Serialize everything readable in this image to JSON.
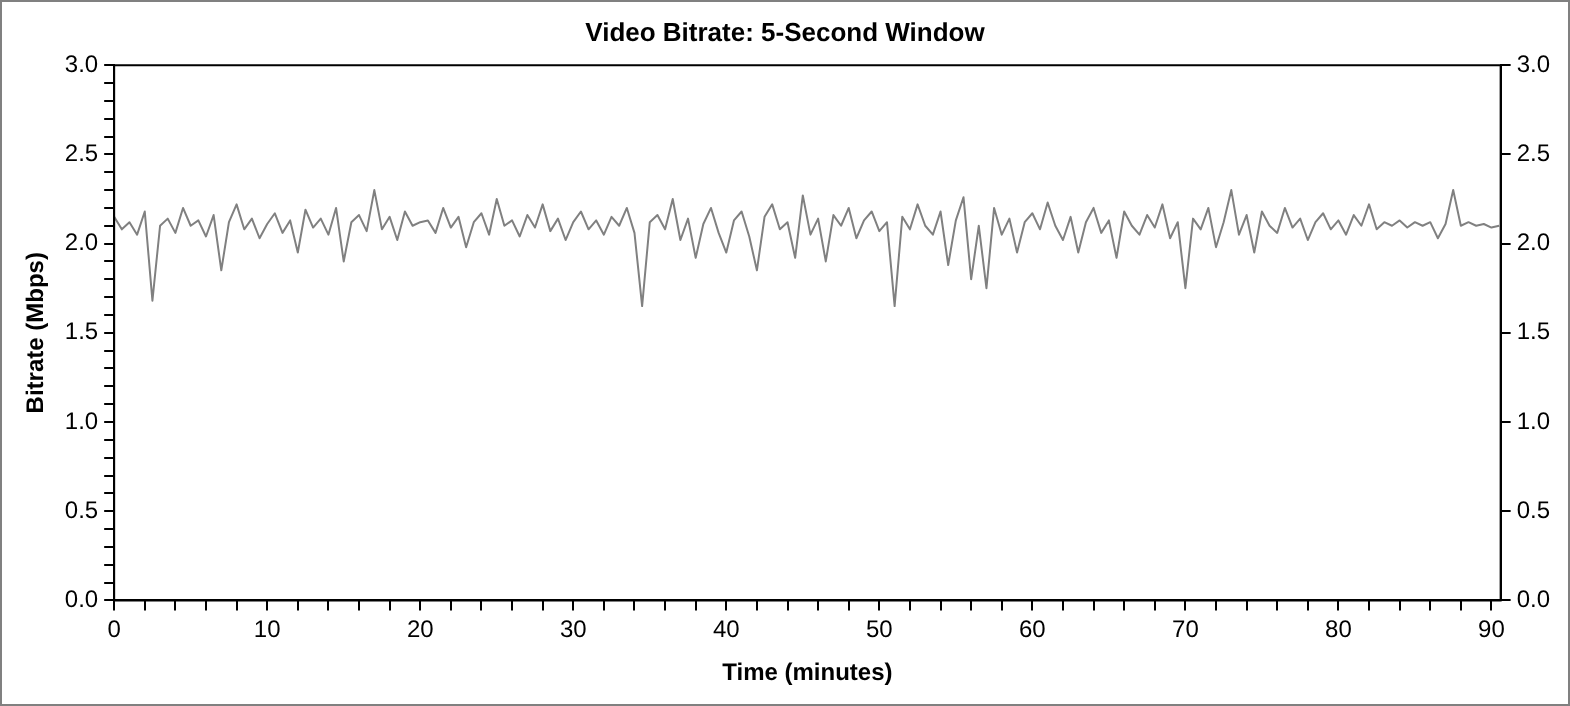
{
  "chart_data": {
    "type": "line",
    "title": "Video Bitrate: 5-Second Window",
    "xlabel": "Time (minutes)",
    "ylabel": "Bitrate (Mbps)",
    "xlim": [
      0,
      90.6
    ],
    "ylim": [
      0,
      3
    ],
    "y2lim": [
      0,
      3
    ],
    "xticks": [
      0,
      {
        "value": 2,
        "label": null
      },
      {
        "value": 4,
        "label": null
      },
      {
        "value": 6,
        "label": null
      },
      {
        "value": 8,
        "label": null
      },
      10,
      {
        "value": 12,
        "label": null
      },
      {
        "value": 14,
        "label": null
      },
      {
        "value": 16,
        "label": null
      },
      {
        "value": 18,
        "label": null
      },
      20,
      {
        "value": 22,
        "label": null
      },
      {
        "value": 24,
        "label": null
      },
      {
        "value": 26,
        "label": null
      },
      {
        "value": 28,
        "label": null
      },
      30,
      {
        "value": 32,
        "label": null
      },
      {
        "value": 34,
        "label": null
      },
      {
        "value": 36,
        "label": null
      },
      {
        "value": 38,
        "label": null
      },
      40,
      {
        "value": 42,
        "label": null
      },
      {
        "value": 44,
        "label": null
      },
      {
        "value": 46,
        "label": null
      },
      {
        "value": 48,
        "label": null
      },
      50,
      {
        "value": 52,
        "label": null
      },
      {
        "value": 54,
        "label": null
      },
      {
        "value": 56,
        "label": null
      },
      {
        "value": 58,
        "label": null
      },
      60,
      {
        "value": 62,
        "label": null
      },
      {
        "value": 64,
        "label": null
      },
      {
        "value": 66,
        "label": null
      },
      {
        "value": 68,
        "label": null
      },
      70,
      {
        "value": 72,
        "label": null
      },
      {
        "value": 74,
        "label": null
      },
      {
        "value": 76,
        "label": null
      },
      {
        "value": 78,
        "label": null
      },
      80,
      {
        "value": 82,
        "label": null
      },
      {
        "value": 84,
        "label": null
      },
      {
        "value": 86,
        "label": null
      },
      {
        "value": 88,
        "label": null
      },
      90
    ],
    "yticks": [
      {
        "value": 0,
        "label": "0.0"
      },
      {
        "value": 0.1,
        "label": null
      },
      {
        "value": 0.2,
        "label": null
      },
      {
        "value": 0.3,
        "label": null
      },
      {
        "value": 0.4,
        "label": null
      },
      0.5,
      {
        "value": 0.6,
        "label": null
      },
      {
        "value": 0.7,
        "label": null
      },
      {
        "value": 0.8,
        "label": null
      },
      {
        "value": 0.9,
        "label": null
      },
      {
        "value": 1,
        "label": "1.0"
      },
      {
        "value": 1.1,
        "label": null
      },
      {
        "value": 1.2,
        "label": null
      },
      {
        "value": 1.3,
        "label": null
      },
      {
        "value": 1.4,
        "label": null
      },
      1.5,
      {
        "value": 1.6,
        "label": null
      },
      {
        "value": 1.7,
        "label": null
      },
      {
        "value": 1.8,
        "label": null
      },
      {
        "value": 1.9,
        "label": null
      },
      {
        "value": 2,
        "label": "2.0"
      },
      {
        "value": 2.1,
        "label": null
      },
      {
        "value": 2.2,
        "label": null
      },
      {
        "value": 2.3,
        "label": null
      },
      {
        "value": 2.4,
        "label": null
      },
      2.5,
      {
        "value": 2.6,
        "label": null
      },
      {
        "value": 2.7,
        "label": null
      },
      {
        "value": 2.8,
        "label": null
      },
      {
        "value": 2.9,
        "label": null
      },
      {
        "value": 3,
        "label": "3.0"
      }
    ],
    "y2ticks": [
      {
        "value": 0,
        "label": "0.0"
      },
      0.5,
      {
        "value": 1,
        "label": "1.0"
      },
      1.5,
      {
        "value": 2,
        "label": "2.0"
      },
      2.5,
      {
        "value": 3,
        "label": "3.0"
      }
    ],
    "grid": false,
    "legend": false,
    "marker": "none",
    "line_style": "solid",
    "series": [
      {
        "color": "#808080",
        "x": [
          0,
          0.5,
          1,
          1.5,
          2,
          2.5,
          3,
          3.5,
          4,
          4.5,
          5,
          5.5,
          6,
          6.5,
          7,
          7.5,
          8,
          8.5,
          9,
          9.5,
          10,
          10.5,
          11,
          11.5,
          12,
          12.5,
          13,
          13.5,
          14,
          14.5,
          15,
          15.5,
          16,
          16.5,
          17,
          17.5,
          18,
          18.5,
          19,
          19.5,
          20,
          20.5,
          21,
          21.5,
          22,
          22.5,
          23,
          23.5,
          24,
          24.5,
          25,
          25.5,
          26,
          26.5,
          27,
          27.5,
          28,
          28.5,
          29,
          29.5,
          30,
          30.5,
          31,
          31.5,
          32,
          32.5,
          33,
          33.5,
          34,
          34.5,
          35,
          35.5,
          36,
          36.5,
          37,
          37.5,
          38,
          38.5,
          39,
          39.5,
          40,
          40.5,
          41,
          41.5,
          42,
          42.5,
          43,
          43.5,
          44,
          44.5,
          45,
          45.5,
          46,
          46.5,
          47,
          47.5,
          48,
          48.5,
          49,
          49.5,
          50,
          50.5,
          51,
          51.5,
          52,
          52.5,
          53,
          53.5,
          54,
          54.5,
          55,
          55.5,
          56,
          56.5,
          57,
          57.5,
          58,
          58.5,
          59,
          59.5,
          60,
          60.5,
          61,
          61.5,
          62,
          62.5,
          63,
          63.5,
          64,
          64.5,
          65,
          65.5,
          66,
          66.5,
          67,
          67.5,
          68,
          68.5,
          69,
          69.5,
          70,
          70.5,
          71,
          71.5,
          72,
          72.5,
          73,
          73.5,
          74,
          74.5,
          75,
          75.5,
          76,
          76.5,
          77,
          77.5,
          78,
          78.5,
          79,
          79.5,
          80,
          80.5,
          81,
          81.5,
          82,
          82.5,
          83,
          83.5,
          84,
          84.5,
          85,
          85.5,
          86,
          86.5,
          87,
          87.5,
          88,
          88.5,
          89,
          89.5,
          90,
          90.5
        ],
        "values": [
          2.15,
          2.08,
          2.12,
          2.05,
          2.18,
          1.68,
          2.1,
          2.14,
          2.06,
          2.2,
          2.1,
          2.13,
          2.04,
          2.16,
          1.85,
          2.12,
          2.22,
          2.08,
          2.14,
          2.03,
          2.11,
          2.17,
          2.06,
          2.13,
          1.95,
          2.19,
          2.09,
          2.14,
          2.05,
          2.2,
          1.9,
          2.12,
          2.16,
          2.07,
          2.3,
          2.08,
          2.15,
          2.02,
          2.18,
          2.1,
          2.12,
          2.13,
          2.06,
          2.2,
          2.09,
          2.15,
          1.98,
          2.12,
          2.17,
          2.05,
          2.25,
          2.1,
          2.13,
          2.04,
          2.16,
          2.09,
          2.22,
          2.07,
          2.14,
          2.02,
          2.12,
          2.18,
          2.08,
          2.13,
          2.05,
          2.15,
          2.1,
          2.2,
          2.06,
          1.65,
          2.12,
          2.16,
          2.08,
          2.25,
          2.02,
          2.14,
          1.92,
          2.11,
          2.2,
          2.06,
          1.95,
          2.13,
          2.18,
          2.04,
          1.85,
          2.15,
          2.22,
          2.08,
          2.12,
          1.92,
          2.27,
          2.05,
          2.14,
          1.9,
          2.16,
          2.1,
          2.2,
          2.03,
          2.13,
          2.18,
          2.07,
          2.12,
          1.65,
          2.15,
          2.08,
          2.22,
          2.1,
          2.05,
          2.18,
          1.88,
          2.13,
          2.26,
          1.8,
          2.1,
          1.75,
          2.2,
          2.05,
          2.14,
          1.95,
          2.12,
          2.17,
          2.08,
          2.23,
          2.1,
          2.02,
          2.15,
          1.95,
          2.12,
          2.2,
          2.06,
          2.13,
          1.92,
          2.18,
          2.1,
          2.05,
          2.16,
          2.09,
          2.22,
          2.03,
          2.12,
          1.75,
          2.14,
          2.08,
          2.2,
          1.98,
          2.12,
          2.3,
          2.05,
          2.16,
          1.95,
          2.18,
          2.1,
          2.06,
          2.2,
          2.09,
          2.14,
          2.02,
          2.12,
          2.17,
          2.08,
          2.13,
          2.05,
          2.16,
          2.1,
          2.22,
          2.08,
          2.12,
          2.1,
          2.13,
          2.09,
          2.12,
          2.1,
          2.12,
          2.03,
          2.11,
          2.3,
          2.1,
          2.12,
          2.1,
          2.11,
          2.09,
          2.1
        ]
      }
    ]
  }
}
